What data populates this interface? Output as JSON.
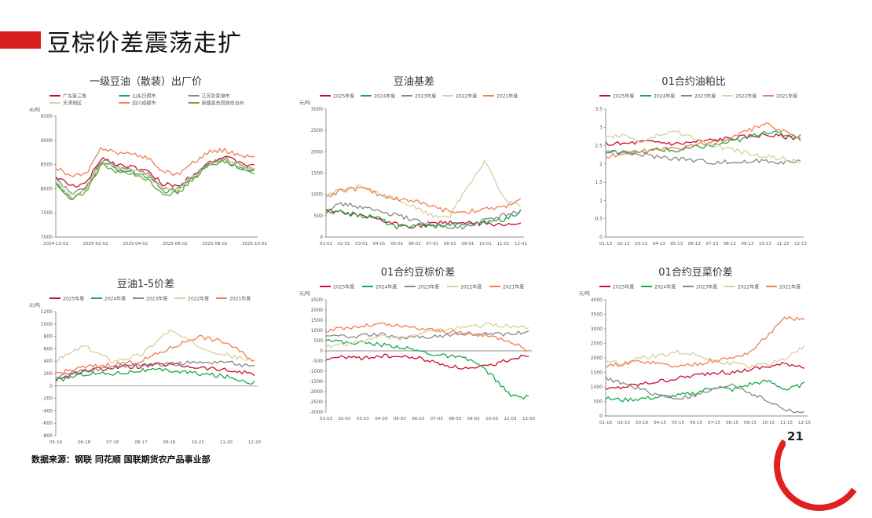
{
  "page": {
    "title": "豆棕价差震荡走扩",
    "source": "数据来源：钢联 同花顺 国联期货农产品事业部",
    "page_number": "21",
    "accent": "#d91e1e"
  },
  "chart_data": [
    {
      "id": "c1",
      "type": "line",
      "title": "一级豆油（散装）出厂价",
      "ylabel": "元/吨",
      "ylim": [
        7000,
        9500
      ],
      "yticks": [
        7000,
        7500,
        8000,
        8500,
        9000,
        9500
      ],
      "xticks": [
        "2024-12-02",
        "2025-02-02",
        "2025-04-02",
        "2025-06-02",
        "2025-08-02",
        "2025-10-02"
      ],
      "legend_cols": 3,
      "series": [
        {
          "name": "广东第三角",
          "color": "#c8102e",
          "values": [
            8250,
            8050,
            8100,
            8650,
            8500,
            8450,
            8350,
            8100,
            8050,
            8300,
            8550,
            8650,
            8550,
            8450
          ]
        },
        {
          "name": "山东日照市",
          "color": "#18a84a",
          "values": [
            8150,
            7750,
            8000,
            8550,
            8400,
            8350,
            8250,
            7950,
            7950,
            8250,
            8500,
            8600,
            8450,
            8350
          ]
        },
        {
          "name": "江苏张家港市",
          "color": "#888888",
          "values": [
            8200,
            7900,
            8050,
            8600,
            8450,
            8400,
            8300,
            8000,
            8000,
            8280,
            8520,
            8620,
            8500,
            8400
          ]
        },
        {
          "name": "天津地区",
          "color": "#d9cfa0",
          "values": [
            8150,
            7850,
            8000,
            8580,
            8420,
            8380,
            8280,
            7980,
            7980,
            8260,
            8510,
            8610,
            8480,
            8380
          ]
        },
        {
          "name": "四川成都市",
          "color": "#f08050",
          "values": [
            8450,
            8250,
            8300,
            8850,
            8750,
            8700,
            8650,
            8350,
            8300,
            8550,
            8750,
            8800,
            8700,
            8650
          ]
        },
        {
          "name": "新疆昌吉回族自治州",
          "color": "#6aa33a",
          "values": [
            8100,
            7800,
            7950,
            8500,
            8350,
            8300,
            8200,
            7900,
            7900,
            8200,
            8480,
            8580,
            8420,
            8320
          ]
        }
      ]
    },
    {
      "id": "c2",
      "type": "line",
      "title": "豆油基差",
      "ylabel": "元/吨",
      "ylim": [
        0,
        3000
      ],
      "yticks": [
        0,
        500,
        1000,
        1500,
        2000,
        2500,
        3000
      ],
      "xticks": [
        "01-02",
        "02-01",
        "03-01",
        "04-01",
        "05-01",
        "06-01",
        "07-01",
        "08-01",
        "09-01",
        "10-01",
        "11-01",
        "12-01"
      ],
      "legend_cols": 5,
      "series": [
        {
          "name": "2025年度",
          "color": "#c8102e",
          "values": [
            620,
            560,
            480,
            400,
            300,
            250,
            300,
            350,
            320,
            300,
            300,
            280
          ]
        },
        {
          "name": "2024年度",
          "color": "#18a84a",
          "values": [
            560,
            580,
            500,
            450,
            200,
            300,
            250,
            300,
            300,
            350,
            400,
            600
          ]
        },
        {
          "name": "2023年度",
          "color": "#888888",
          "values": [
            650,
            780,
            700,
            600,
            500,
            400,
            300,
            200,
            250,
            400,
            500,
            600
          ]
        },
        {
          "name": "2022年度",
          "color": "#d9cfa0",
          "values": [
            1000,
            1100,
            1200,
            1000,
            900,
            700,
            500,
            500,
            1200,
            1800,
            900,
            700
          ]
        },
        {
          "name": "2021年度",
          "color": "#f08050",
          "values": [
            950,
            1100,
            1150,
            1000,
            900,
            850,
            700,
            600,
            600,
            650,
            700,
            900
          ]
        }
      ]
    },
    {
      "id": "c3",
      "type": "line",
      "title": "01合约油粕比",
      "ylabel": "",
      "ylim": [
        0,
        3.5
      ],
      "yticks": [
        0,
        0.5,
        1,
        1.5,
        2,
        2.5,
        3,
        3.5
      ],
      "xticks": [
        "01-13",
        "02-13",
        "03-13",
        "04-13",
        "05-13",
        "06-13",
        "07-13",
        "08-13",
        "09-13",
        "10-13",
        "11-13",
        "12-13"
      ],
      "legend_cols": 5,
      "series": [
        {
          "name": "2025年度",
          "color": "#c8102e",
          "values": [
            2.55,
            2.55,
            2.6,
            2.6,
            2.55,
            2.6,
            2.65,
            2.7,
            2.75,
            2.8,
            2.75,
            2.7
          ]
        },
        {
          "name": "2024年度",
          "color": "#18a84a",
          "values": [
            2.3,
            2.35,
            2.3,
            2.4,
            2.35,
            2.45,
            2.5,
            2.6,
            2.7,
            2.9,
            2.8,
            2.75
          ]
        },
        {
          "name": "2023年度",
          "color": "#888888",
          "values": [
            2.35,
            2.3,
            2.25,
            2.2,
            2.15,
            2.1,
            2.05,
            2.05,
            2.05,
            2.1,
            2.05,
            2.05
          ]
        },
        {
          "name": "2022年度",
          "color": "#d9cfa0",
          "values": [
            2.7,
            2.8,
            2.6,
            2.8,
            2.9,
            2.7,
            2.5,
            2.4,
            2.3,
            2.2,
            2.15,
            2.0
          ]
        },
        {
          "name": "2021年度",
          "color": "#f08050",
          "values": [
            2.2,
            2.3,
            2.35,
            2.4,
            2.4,
            2.5,
            2.6,
            2.7,
            2.9,
            3.1,
            2.9,
            2.7
          ]
        }
      ]
    },
    {
      "id": "c4",
      "type": "line",
      "title": "豆油1-5价差",
      "ylabel": "元/吨",
      "ylim": [
        -800,
        1200
      ],
      "yticks": [
        -800,
        -600,
        -400,
        -200,
        0,
        200,
        400,
        600,
        800,
        1000,
        1200
      ],
      "xticks": [
        "05-19",
        "06-18",
        "07-18",
        "08-17",
        "09-16",
        "10-21",
        "11-20",
        "12-20"
      ],
      "legend_cols": 5,
      "series": [
        {
          "name": "2025年度",
          "color": "#c8102e",
          "values": [
            100,
            250,
            300,
            320,
            350,
            300,
            250,
            200
          ]
        },
        {
          "name": "2024年度",
          "color": "#18a84a",
          "values": [
            80,
            200,
            200,
            250,
            250,
            200,
            150,
            50
          ]
        },
        {
          "name": "2023年度",
          "color": "#888888",
          "values": [
            150,
            250,
            300,
            350,
            350,
            380,
            400,
            300
          ]
        },
        {
          "name": "2022年度",
          "color": "#d9cfa0",
          "values": [
            400,
            650,
            400,
            500,
            900,
            650,
            500,
            400
          ]
        },
        {
          "name": "2021年度",
          "color": "#f08050",
          "values": [
            200,
            300,
            350,
            400,
            600,
            800,
            700,
            400
          ]
        }
      ]
    },
    {
      "id": "c5",
      "type": "line",
      "title": "01合约豆棕价差",
      "ylabel": "元/吨",
      "ylim": [
        -3000,
        2500
      ],
      "yticks": [
        -3000,
        -2500,
        -2000,
        -1500,
        -1000,
        -500,
        0,
        500,
        1000,
        1500,
        2000,
        2500
      ],
      "xticks": [
        "01-03",
        "02-03",
        "03-03",
        "04-03",
        "05-03",
        "06-03",
        "07-03",
        "08-03",
        "09-03",
        "10-03",
        "11-03",
        "12-03"
      ],
      "legend_cols": 5,
      "series": [
        {
          "name": "2025年度",
          "color": "#c8102e",
          "values": [
            -400,
            -300,
            -350,
            -250,
            -300,
            -350,
            -600,
            -800,
            -900,
            -700,
            -400,
            -200
          ]
        },
        {
          "name": "2024年度",
          "color": "#18a84a",
          "values": [
            600,
            400,
            400,
            300,
            200,
            0,
            -200,
            -300,
            -500,
            -1200,
            -2200,
            -2300
          ]
        },
        {
          "name": "2023年度",
          "color": "#888888",
          "values": [
            700,
            700,
            750,
            800,
            600,
            700,
            700,
            800,
            850,
            800,
            850,
            900
          ]
        },
        {
          "name": "2022年度",
          "color": "#d9cfa0",
          "values": [
            200,
            300,
            500,
            700,
            600,
            800,
            1000,
            1100,
            1200,
            1300,
            1200,
            1100
          ]
        },
        {
          "name": "2021年度",
          "color": "#f08050",
          "values": [
            1000,
            1100,
            1200,
            1300,
            1200,
            1100,
            1000,
            900,
            800,
            700,
            500,
            0
          ]
        }
      ]
    },
    {
      "id": "c6",
      "type": "line",
      "title": "01合约豆菜价差",
      "ylabel": "元/吨",
      "ylim": [
        0,
        4000
      ],
      "yticks": [
        0,
        500,
        1000,
        1500,
        2000,
        2500,
        3000,
        3500,
        4000
      ],
      "xticks": [
        "01-16",
        "02-15",
        "03-16",
        "04-15",
        "05-15",
        "06-15",
        "07-15",
        "08-15",
        "09-15",
        "10-15",
        "11-15",
        "12-15"
      ],
      "legend_cols": 5,
      "series": [
        {
          "name": "2025年度",
          "color": "#c8102e",
          "values": [
            900,
            1000,
            1100,
            1200,
            1300,
            1400,
            1500,
            1500,
            1600,
            1700,
            1800,
            1700
          ]
        },
        {
          "name": "2024年度",
          "color": "#18a84a",
          "values": [
            600,
            550,
            600,
            650,
            700,
            800,
            1000,
            900,
            1100,
            1200,
            900,
            1100
          ]
        },
        {
          "name": "2023年度",
          "color": "#888888",
          "values": [
            1300,
            1100,
            900,
            700,
            600,
            700,
            900,
            1100,
            800,
            500,
            200,
            100
          ]
        },
        {
          "name": "2022年度",
          "color": "#d9cfa0",
          "values": [
            1900,
            1800,
            2000,
            2100,
            2200,
            2100,
            1900,
            1800,
            1700,
            1800,
            2000,
            2400
          ]
        },
        {
          "name": "2021年度",
          "color": "#f08050",
          "values": [
            1700,
            1800,
            1900,
            1800,
            1700,
            1800,
            1900,
            2000,
            2200,
            2800,
            3400,
            3300
          ]
        }
      ]
    }
  ]
}
